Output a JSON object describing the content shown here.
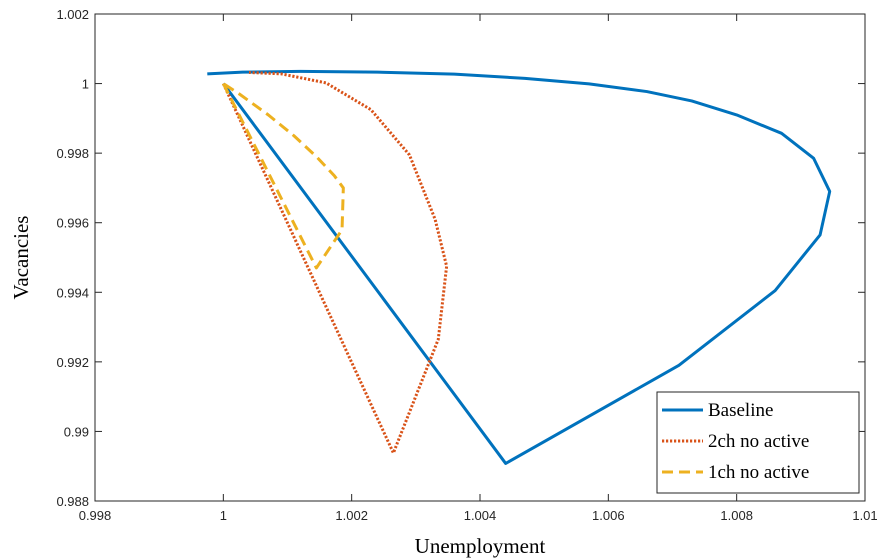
{
  "chart_data": {
    "type": "line",
    "title": "",
    "xlabel": "Unemployment",
    "ylabel": "Vacancies",
    "xlim": [
      0.998,
      1.01
    ],
    "ylim": [
      0.988,
      1.002
    ],
    "xticks": [
      0.998,
      1,
      1.002,
      1.004,
      1.006,
      1.008,
      1.01
    ],
    "xtick_labels": [
      "0.998",
      "1",
      "1.002",
      "1.004",
      "1.006",
      "1.008",
      "1.01"
    ],
    "yticks": [
      0.988,
      0.99,
      0.992,
      0.994,
      0.996,
      0.998,
      1,
      1.002
    ],
    "ytick_labels": [
      "0.988",
      "0.99",
      "0.992",
      "0.994",
      "0.996",
      "0.998",
      "1",
      "1.002"
    ],
    "grid": false,
    "legend_position": "bottom-right",
    "series": [
      {
        "name": "Baseline",
        "color": "#0072BD",
        "style": "solid",
        "x": [
          1.0,
          1.0044,
          1.0071,
          1.0086,
          1.0093,
          1.00945,
          1.0092,
          1.0087,
          1.008,
          1.0073,
          1.0066,
          1.0057,
          1.0047,
          1.0036,
          1.0024,
          1.0012,
          1.0003,
          0.99975
        ],
        "y": [
          1.0,
          0.98908,
          0.9919,
          0.99405,
          0.99565,
          0.9969,
          0.99785,
          0.99857,
          0.9991,
          0.9995,
          0.99977,
          0.99999,
          1.00015,
          1.00027,
          1.00033,
          1.00035,
          1.00033,
          1.00028
        ]
      },
      {
        "name": "2ch no active",
        "color": "#D95319",
        "style": "dotted",
        "x": [
          1.0,
          1.00265,
          1.00335,
          1.00348,
          1.0033,
          1.0029,
          1.0023,
          1.0016,
          1.0009,
          1.0004
        ],
        "y": [
          1.0,
          0.98938,
          0.99265,
          0.99475,
          0.9961,
          0.99795,
          0.99925,
          1.00002,
          1.00028,
          1.00032
        ]
      },
      {
        "name": "1ch no active",
        "color": "#EDB120",
        "style": "dashed",
        "x": [
          1.0,
          1.00145,
          1.00185,
          1.00187,
          1.00173,
          1.00145,
          1.0011,
          1.0007,
          1.00025,
          1.0
        ],
        "y": [
          1.0,
          0.9947,
          0.9958,
          0.997,
          0.99735,
          0.9979,
          0.9985,
          0.9991,
          0.9997,
          1.0
        ]
      }
    ]
  }
}
